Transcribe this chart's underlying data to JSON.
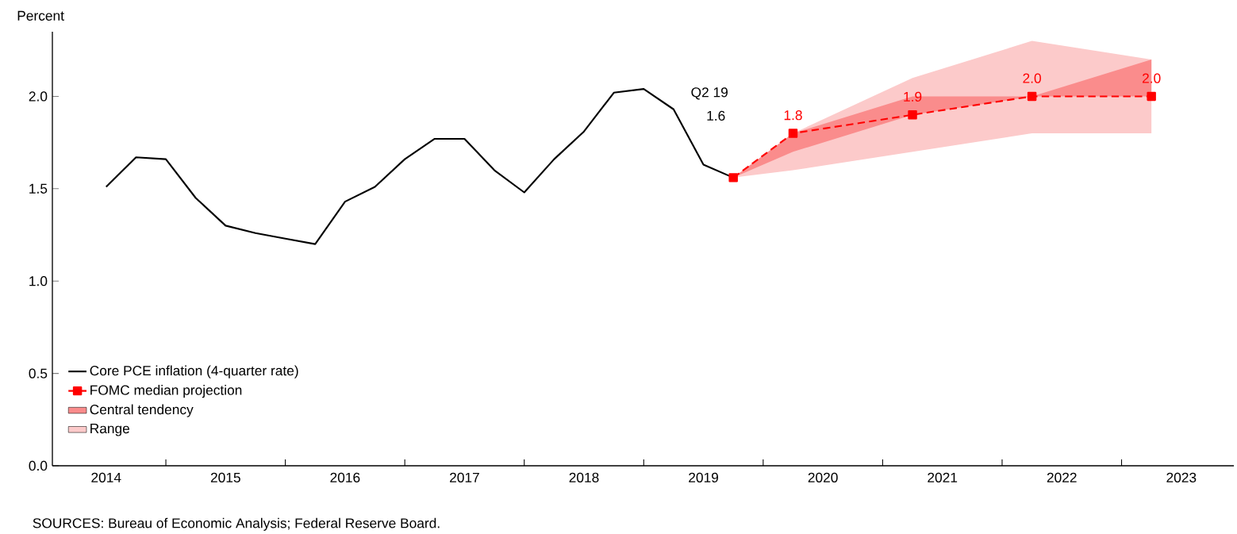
{
  "chart_data": {
    "type": "line",
    "ylabel": "Percent",
    "xlim": [
      2013.55,
      2023.44
    ],
    "ylim": [
      0,
      2.35
    ],
    "xticks": [
      2014,
      2015,
      2016,
      2017,
      2018,
      2019,
      2020,
      2021,
      2022,
      2023,
      {
        "value": 2014.5,
        "label": null
      },
      {
        "value": 2015.5,
        "label": null
      },
      {
        "value": 2016.5,
        "label": null
      },
      {
        "value": 2017.5,
        "label": null
      },
      {
        "value": 2018.5,
        "label": null
      },
      {
        "value": 2019.5,
        "label": null
      },
      {
        "value": 2020.5,
        "label": null
      },
      {
        "value": 2021.5,
        "label": null
      },
      {
        "value": 2022.5,
        "label": null
      }
    ],
    "yticks": [
      {
        "value": 0,
        "label": "0.0"
      },
      {
        "value": 0.5,
        "label": "0.5"
      },
      {
        "value": 1.0,
        "label": "1.0"
      },
      {
        "value": 1.5,
        "label": "1.5"
      },
      {
        "value": 2.0,
        "label": "2.0"
      }
    ],
    "legend": "bottom left",
    "grid": false,
    "series": [
      {
        "name": "Core PCE inflation (4-quarter rate)",
        "color": "#000000",
        "line_style": "solid",
        "marker": "none",
        "x": [
          2014.0,
          2014.25,
          2014.5,
          2014.75,
          2015.0,
          2015.25,
          2015.5,
          2015.75,
          2016.0,
          2016.25,
          2016.5,
          2016.75,
          2017.0,
          2017.25,
          2017.5,
          2017.75,
          2018.0,
          2018.25,
          2018.5,
          2018.75,
          2019.0,
          2019.25
        ],
        "values": [
          1.51,
          1.67,
          1.66,
          1.45,
          1.3,
          1.26,
          1.23,
          1.2,
          1.43,
          1.51,
          1.66,
          1.77,
          1.77,
          1.6,
          1.48,
          1.66,
          1.81,
          2.02,
          2.04,
          1.93,
          1.63,
          1.56
        ]
      },
      {
        "name": "FOMC median projection",
        "color": "#ff0000",
        "line_style": "dashed",
        "marker": "square",
        "x": [
          2019.25,
          2019.75,
          2020.75,
          2021.75,
          2022.75
        ],
        "values": [
          1.56,
          1.8,
          1.9,
          2.0,
          2.0
        ],
        "value_labels": [
          null,
          "1.8",
          "1.9",
          "2.0",
          "2.0"
        ]
      },
      {
        "name": "Central tendency",
        "type": "area",
        "color": "#fa8c8c",
        "x": [
          2019.25,
          2019.75,
          2020.75,
          2021.75,
          2022.75
        ],
        "values": [
          null,
          null,
          null,
          null,
          null
        ],
        "lower": [
          1.56,
          1.7,
          1.9,
          2.0,
          2.0
        ],
        "upper": [
          1.56,
          1.8,
          2.0,
          2.0,
          2.2
        ]
      },
      {
        "name": "Range",
        "type": "area",
        "color": "#fccaca",
        "x": [
          2019.25,
          2019.75,
          2020.75,
          2021.75,
          2022.75
        ],
        "values": [
          null,
          null,
          null,
          null,
          null
        ],
        "lower": [
          1.56,
          1.6,
          1.7,
          1.8,
          1.8
        ],
        "upper": [
          1.56,
          1.8,
          2.1,
          2.3,
          2.2
        ]
      }
    ],
    "annotations": [
      "Q2 19",
      "1.6",
      "SOURCES: Bureau of Economic Analysis; Federal Reserve Board."
    ]
  }
}
